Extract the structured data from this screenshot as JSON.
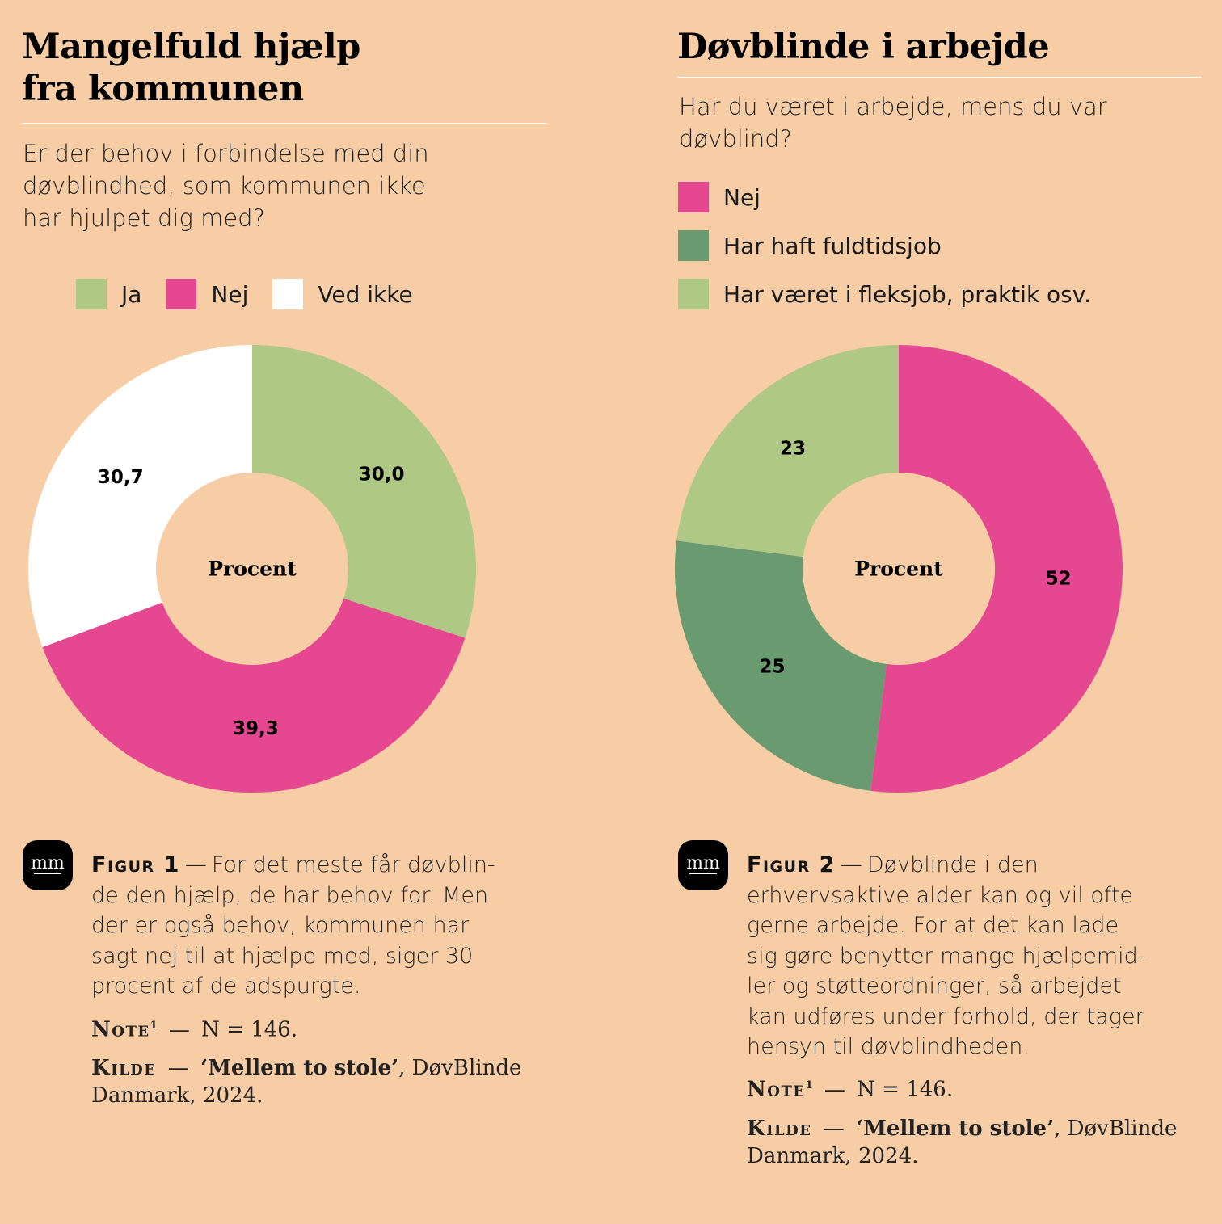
{
  "charts": [
    {
      "title_line1": "Mangelfuld hjælp",
      "title_line2": "fra kommunen",
      "question_lines": [
        "Er der behov i forbindelse med din",
        "døvblindhed, som kommunen ikke",
        "har hjulpet dig med?"
      ],
      "center_label": "Procent",
      "figure_label": "Figur 1",
      "caption_lines": [
        "For det meste får døvblin-",
        "de den hjælp, de har behov for. Men",
        "der er også behov, kommunen har",
        "sagt nej til at hjælpe med, siger 30",
        "procent af de adspurgte."
      ],
      "note_key": "Note",
      "note_sup": "1",
      "note_value": "N = 146.",
      "source_key": "Kilde",
      "source_title": "‘Mellem to stole’",
      "source_rest_line1": ", DøvBlinde",
      "source_rest_line2": "Danmark, 2024.",
      "logo_text": "mm"
    },
    {
      "title_line1": "Døvblinde i arbejde",
      "question_lines": [
        "Har du været i arbejde, mens du var",
        "døvblind?"
      ],
      "center_label": "Procent",
      "figure_label": "Figur 2",
      "caption_lines": [
        "Døvblinde i den",
        "erhvervsaktive alder kan og vil ofte",
        "gerne arbejde. For at det kan lade",
        "sig gøre benytter mange hjælpemid-",
        "ler og støtteordninger, så arbejdet",
        "kan udføres under forhold, der tager",
        "hensyn til døvblindheden."
      ],
      "note_key": "Note",
      "note_sup": "1",
      "note_value": "N = 146.",
      "source_key": "Kilde",
      "source_title": "‘Mellem to stole’",
      "source_rest_line1": ", DøvBlinde",
      "source_rest_line2": "Danmark, 2024.",
      "logo_text": "mm"
    }
  ],
  "chart_data": [
    {
      "type": "pie",
      "donut": true,
      "center_text": "Procent",
      "title": "Mangelfuld hjælp fra kommunen",
      "categories": [
        "Ja",
        "Nej",
        "Ved ikke"
      ],
      "values": [
        30.0,
        39.3,
        30.7
      ],
      "value_labels": [
        "30,0",
        "39,3",
        "30,7"
      ],
      "colors": [
        "#afc886",
        "#e64791",
        "#ffffff"
      ],
      "legend": "top"
    },
    {
      "type": "pie",
      "donut": true,
      "center_text": "Procent",
      "title": "Døvblinde i arbejde",
      "categories": [
        "Nej",
        "Har haft fuldtidsjob",
        "Har været i fleksjob, praktik osv."
      ],
      "values": [
        52,
        25,
        23
      ],
      "value_labels": [
        "52",
        "25",
        "23"
      ],
      "colors": [
        "#e64791",
        "#6a9a6f",
        "#afc886"
      ],
      "legend": "top"
    }
  ]
}
